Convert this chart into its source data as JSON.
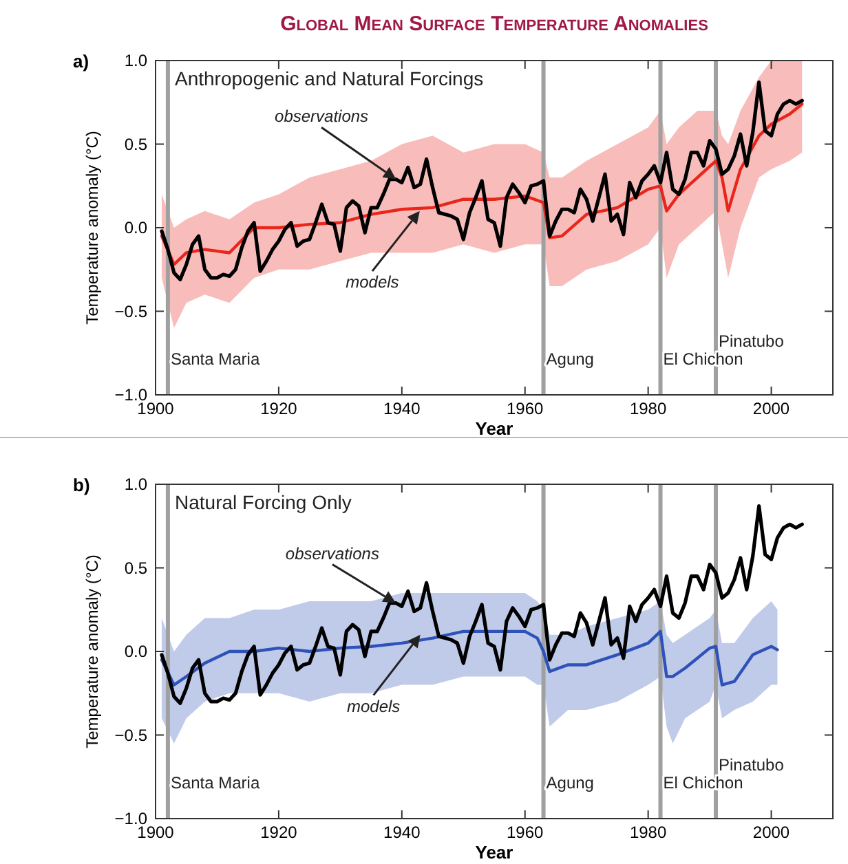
{
  "chart_data": [
    {
      "type": "line",
      "title": "Global Mean Surface Temperature Anomalies",
      "subtitle": "Anthropogenic and Natural Forcings",
      "xlabel": "Year",
      "ylabel": "Temperature anomaly (°C)",
      "xlim": [
        1900,
        2010
      ],
      "ylim": [
        -1,
        1
      ],
      "xticks": [
        1900,
        1920,
        1940,
        1960,
        1980,
        2000
      ],
      "yticks": [
        {
          "value": -1,
          "label": "−1.0"
        },
        {
          "value": -0.5,
          "label": "−0.5"
        },
        {
          "value": 0,
          "label": "0.0"
        },
        {
          "value": 0.5,
          "label": "0.5"
        },
        {
          "value": 1,
          "label": "1.0"
        }
      ],
      "grid": false,
      "series": [
        {
          "color": "#e8261c",
          "x": [
            1901,
            1903,
            1905,
            1908,
            1912,
            1916,
            1920,
            1925,
            1930,
            1935,
            1940,
            1945,
            1950,
            1955,
            1960,
            1963,
            1964,
            1966,
            1970,
            1975,
            1980,
            1982,
            1983,
            1985,
            1988,
            1991,
            1992,
            1993,
            1995,
            1998,
            2000,
            2003,
            2005
          ],
          "values": [
            -0.05,
            -0.22,
            -0.15,
            -0.13,
            -0.15,
            0.0,
            0.0,
            0.02,
            0.03,
            0.08,
            0.11,
            0.12,
            0.17,
            0.17,
            0.19,
            0.15,
            -0.06,
            -0.05,
            0.08,
            0.12,
            0.23,
            0.25,
            0.1,
            0.2,
            0.3,
            0.4,
            0.3,
            0.1,
            0.35,
            0.55,
            0.62,
            0.68,
            0.74
          ],
          "upper": [
            0.2,
            0.0,
            0.05,
            0.1,
            0.05,
            0.15,
            0.2,
            0.3,
            0.35,
            0.4,
            0.5,
            0.55,
            0.45,
            0.5,
            0.5,
            0.45,
            0.3,
            0.3,
            0.4,
            0.5,
            0.6,
            0.7,
            0.5,
            0.6,
            0.7,
            0.7,
            0.55,
            0.5,
            0.7,
            0.9,
            1.0,
            1.0,
            1.0
          ],
          "lower": [
            -0.3,
            -0.6,
            -0.45,
            -0.4,
            -0.45,
            -0.3,
            -0.25,
            -0.25,
            -0.2,
            -0.15,
            -0.15,
            -0.15,
            -0.1,
            -0.15,
            -0.1,
            -0.1,
            -0.35,
            -0.35,
            -0.25,
            -0.2,
            -0.1,
            0.0,
            -0.3,
            -0.1,
            0.0,
            0.1,
            -0.1,
            -0.3,
            0.0,
            0.3,
            0.35,
            0.4,
            0.45
          ]
        },
        {
          "color": "#000000",
          "x": [
            1901,
            1902,
            1903,
            1904,
            1905,
            1906,
            1907,
            1908,
            1909,
            1910,
            1911,
            1912,
            1913,
            1914,
            1915,
            1916,
            1917,
            1918,
            1919,
            1920,
            1921,
            1922,
            1923,
            1924,
            1925,
            1926,
            1927,
            1928,
            1929,
            1930,
            1931,
            1932,
            1933,
            1934,
            1935,
            1936,
            1937,
            1938,
            1939,
            1940,
            1941,
            1942,
            1943,
            1944,
            1945,
            1946,
            1947,
            1948,
            1949,
            1950,
            1951,
            1952,
            1953,
            1954,
            1955,
            1956,
            1957,
            1958,
            1959,
            1960,
            1961,
            1962,
            1963,
            1964,
            1965,
            1966,
            1967,
            1968,
            1969,
            1970,
            1971,
            1972,
            1973,
            1974,
            1975,
            1976,
            1977,
            1978,
            1979,
            1980,
            1981,
            1982,
            1983,
            1984,
            1985,
            1986,
            1987,
            1988,
            1989,
            1990,
            1991,
            1992,
            1993,
            1994,
            1995,
            1996,
            1997,
            1998,
            1999,
            2000,
            2001,
            2002,
            2003,
            2004,
            2005
          ],
          "values": [
            -0.02,
            -0.13,
            -0.27,
            -0.31,
            -0.22,
            -0.1,
            -0.05,
            -0.25,
            -0.3,
            -0.3,
            -0.28,
            -0.29,
            -0.25,
            -0.12,
            -0.02,
            0.03,
            -0.26,
            -0.2,
            -0.13,
            -0.08,
            -0.01,
            0.03,
            -0.11,
            -0.08,
            -0.07,
            0.03,
            0.14,
            0.03,
            0.02,
            -0.14,
            0.12,
            0.16,
            0.13,
            -0.03,
            0.12,
            0.12,
            0.2,
            0.29,
            0.29,
            0.27,
            0.36,
            0.24,
            0.26,
            0.41,
            0.24,
            0.09,
            0.08,
            0.07,
            0.05,
            -0.07,
            0.09,
            0.18,
            0.28,
            0.05,
            0.03,
            -0.11,
            0.18,
            0.26,
            0.21,
            0.15,
            0.25,
            0.26,
            0.28,
            -0.05,
            0.04,
            0.11,
            0.11,
            0.09,
            0.23,
            0.17,
            0.04,
            0.18,
            0.32,
            0.04,
            0.08,
            -0.04,
            0.27,
            0.18,
            0.28,
            0.32,
            0.37,
            0.27,
            0.45,
            0.23,
            0.2,
            0.29,
            0.45,
            0.45,
            0.37,
            0.52,
            0.47,
            0.32,
            0.35,
            0.43,
            0.56,
            0.37,
            0.57,
            0.87,
            0.58,
            0.55,
            0.68,
            0.74,
            0.76,
            0.74,
            0.76
          ]
        }
      ],
      "ref_lines": [
        {
          "axis": "x",
          "value": 1902,
          "label": "Santa Maria",
          "color": "#a0a0a0"
        },
        {
          "axis": "x",
          "value": 1963,
          "label": "Agung",
          "color": "#a0a0a0"
        },
        {
          "axis": "x",
          "value": 1982,
          "label": "El Chichon",
          "color": "#a0a0a0"
        },
        {
          "axis": "x",
          "value": 1991,
          "label": "Pinatubo",
          "color": "#a0a0a0"
        }
      ],
      "annotations": [
        "a)",
        "observations",
        "models"
      ]
    },
    {
      "type": "line",
      "subtitle": "Natural Forcing Only",
      "xlabel": "Year",
      "ylabel": "Temperature anomaly (°C)",
      "xlim": [
        1900,
        2010
      ],
      "ylim": [
        -1,
        1
      ],
      "xticks": [
        1900,
        1920,
        1940,
        1960,
        1980,
        2000
      ],
      "yticks": [
        {
          "value": -1,
          "label": "−1.0"
        },
        {
          "value": -0.5,
          "label": "−0.5"
        },
        {
          "value": 0,
          "label": "0.0"
        },
        {
          "value": 0.5,
          "label": "0.5"
        },
        {
          "value": 1,
          "label": "1.0"
        }
      ],
      "grid": false,
      "series": [
        {
          "color": "#2e52b8",
          "x": [
            1901,
            1903,
            1905,
            1908,
            1912,
            1916,
            1920,
            1925,
            1930,
            1935,
            1940,
            1945,
            1950,
            1955,
            1960,
            1962,
            1963,
            1964,
            1967,
            1970,
            1975,
            1980,
            1982,
            1983,
            1984,
            1986,
            1990,
            1991,
            1992,
            1994,
            1997,
            2000,
            2001
          ],
          "values": [
            -0.05,
            -0.2,
            -0.15,
            -0.07,
            0.0,
            0.0,
            0.02,
            0.0,
            0.02,
            0.03,
            0.05,
            0.08,
            0.12,
            0.12,
            0.12,
            0.08,
            0.0,
            -0.12,
            -0.08,
            -0.08,
            -0.02,
            0.05,
            0.12,
            -0.15,
            -0.15,
            -0.1,
            0.02,
            0.03,
            -0.2,
            -0.18,
            -0.02,
            0.03,
            0.01
          ],
          "upper": [
            0.2,
            0.0,
            0.1,
            0.2,
            0.2,
            0.25,
            0.25,
            0.3,
            0.3,
            0.3,
            0.35,
            0.35,
            0.35,
            0.35,
            0.35,
            0.3,
            0.25,
            0.1,
            0.1,
            0.15,
            0.2,
            0.25,
            0.3,
            0.1,
            0.05,
            0.1,
            0.2,
            0.25,
            0.05,
            0.05,
            0.2,
            0.3,
            0.25
          ],
          "lower": [
            -0.4,
            -0.55,
            -0.4,
            -0.3,
            -0.25,
            -0.25,
            -0.25,
            -0.3,
            -0.25,
            -0.25,
            -0.2,
            -0.2,
            -0.15,
            -0.15,
            -0.15,
            -0.2,
            -0.2,
            -0.45,
            -0.35,
            -0.35,
            -0.3,
            -0.2,
            -0.15,
            -0.45,
            -0.55,
            -0.4,
            -0.3,
            -0.2,
            -0.4,
            -0.35,
            -0.3,
            -0.2,
            -0.2
          ]
        },
        {
          "color": "#000000",
          "x": [
            1901,
            1902,
            1903,
            1904,
            1905,
            1906,
            1907,
            1908,
            1909,
            1910,
            1911,
            1912,
            1913,
            1914,
            1915,
            1916,
            1917,
            1918,
            1919,
            1920,
            1921,
            1922,
            1923,
            1924,
            1925,
            1926,
            1927,
            1928,
            1929,
            1930,
            1931,
            1932,
            1933,
            1934,
            1935,
            1936,
            1937,
            1938,
            1939,
            1940,
            1941,
            1942,
            1943,
            1944,
            1945,
            1946,
            1947,
            1948,
            1949,
            1950,
            1951,
            1952,
            1953,
            1954,
            1955,
            1956,
            1957,
            1958,
            1959,
            1960,
            1961,
            1962,
            1963,
            1964,
            1965,
            1966,
            1967,
            1968,
            1969,
            1970,
            1971,
            1972,
            1973,
            1974,
            1975,
            1976,
            1977,
            1978,
            1979,
            1980,
            1981,
            1982,
            1983,
            1984,
            1985,
            1986,
            1987,
            1988,
            1989,
            1990,
            1991,
            1992,
            1993,
            1994,
            1995,
            1996,
            1997,
            1998,
            1999,
            2000,
            2001,
            2002,
            2003,
            2004,
            2005
          ],
          "values": [
            -0.02,
            -0.13,
            -0.27,
            -0.31,
            -0.22,
            -0.1,
            -0.05,
            -0.25,
            -0.3,
            -0.3,
            -0.28,
            -0.29,
            -0.25,
            -0.12,
            -0.02,
            0.03,
            -0.26,
            -0.2,
            -0.13,
            -0.08,
            -0.01,
            0.03,
            -0.11,
            -0.08,
            -0.07,
            0.03,
            0.14,
            0.03,
            0.02,
            -0.14,
            0.12,
            0.16,
            0.13,
            -0.03,
            0.12,
            0.12,
            0.2,
            0.29,
            0.29,
            0.27,
            0.36,
            0.24,
            0.26,
            0.41,
            0.24,
            0.09,
            0.08,
            0.07,
            0.05,
            -0.07,
            0.09,
            0.18,
            0.28,
            0.05,
            0.03,
            -0.11,
            0.18,
            0.26,
            0.21,
            0.15,
            0.25,
            0.26,
            0.28,
            -0.05,
            0.04,
            0.11,
            0.11,
            0.09,
            0.23,
            0.17,
            0.04,
            0.18,
            0.32,
            0.04,
            0.08,
            -0.04,
            0.27,
            0.18,
            0.28,
            0.32,
            0.37,
            0.27,
            0.45,
            0.23,
            0.2,
            0.29,
            0.45,
            0.45,
            0.37,
            0.52,
            0.47,
            0.32,
            0.35,
            0.43,
            0.56,
            0.37,
            0.57,
            0.87,
            0.58,
            0.55,
            0.68,
            0.74,
            0.76,
            0.74,
            0.76
          ]
        }
      ],
      "ref_lines": [
        {
          "axis": "x",
          "value": 1902,
          "label": "Santa Maria",
          "color": "#a0a0a0"
        },
        {
          "axis": "x",
          "value": 1963,
          "label": "Agung",
          "color": "#a0a0a0"
        },
        {
          "axis": "x",
          "value": 1982,
          "label": "El Chichon",
          "color": "#a0a0a0"
        },
        {
          "axis": "x",
          "value": 1991,
          "label": "Pinatubo",
          "color": "#a0a0a0"
        }
      ],
      "annotations": [
        "b)",
        {
          "text": "observations",
          "x": 1939,
          "y": 0.29
        },
        {
          "text": "models",
          "x": 1943,
          "y": 0.1
        }
      ]
    }
  ]
}
